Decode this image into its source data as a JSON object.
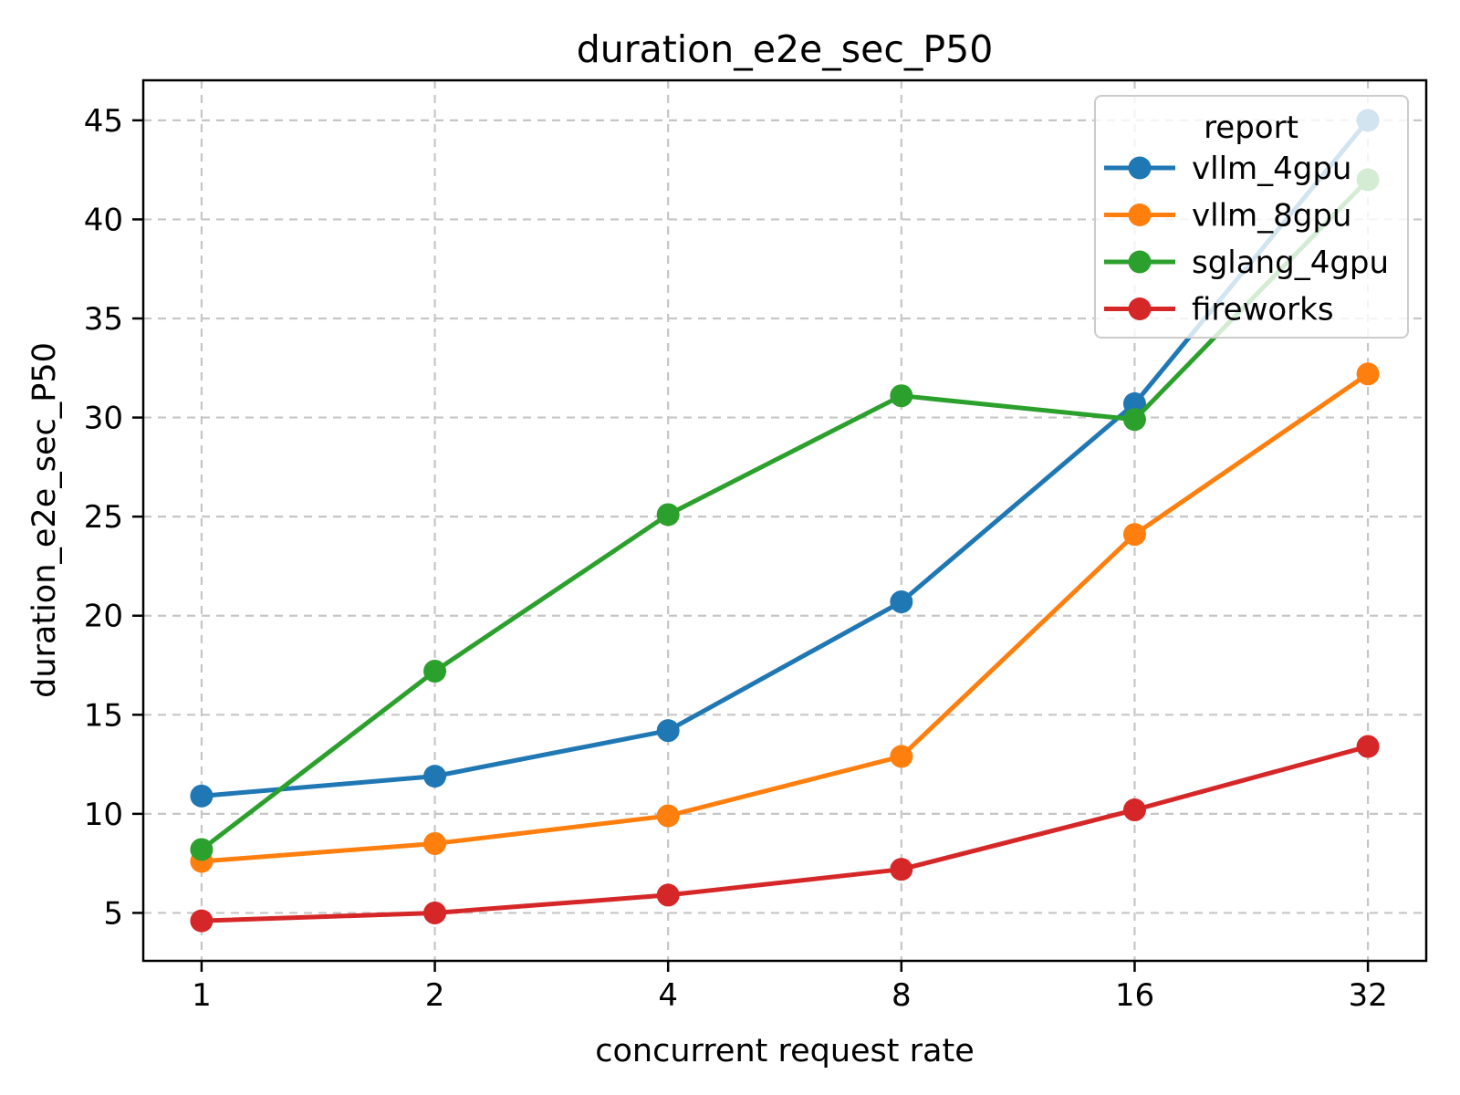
{
  "chart_data": {
    "type": "line",
    "title": "duration_e2e_sec_P50",
    "xlabel": "concurrent request rate",
    "ylabel": "duration_e2e_sec_P50",
    "xscale": "log2",
    "grid": true,
    "x": [
      1,
      2,
      4,
      8,
      16,
      32
    ],
    "x_tick_labels": [
      "1",
      "2",
      "4",
      "8",
      "16",
      "32"
    ],
    "y_ticks": [
      5,
      10,
      15,
      20,
      25,
      30,
      35,
      40,
      45
    ],
    "ylim": [
      2.58,
      47.02
    ],
    "legend": {
      "title": "report",
      "position": "upper right"
    },
    "series": [
      {
        "name": "vllm_4gpu",
        "color": "#1f77b4",
        "values": [
          10.9,
          11.9,
          14.2,
          20.7,
          30.7,
          45.0
        ]
      },
      {
        "name": "vllm_8gpu",
        "color": "#ff7f0e",
        "values": [
          7.6,
          8.5,
          9.9,
          12.9,
          24.1,
          32.2
        ]
      },
      {
        "name": "sglang_4gpu",
        "color": "#2ca02c",
        "values": [
          8.2,
          17.2,
          25.1,
          31.1,
          29.9,
          42.0
        ]
      },
      {
        "name": "fireworks",
        "color": "#d62728",
        "values": [
          4.6,
          5.0,
          5.9,
          7.2,
          10.2,
          13.4
        ]
      }
    ]
  }
}
